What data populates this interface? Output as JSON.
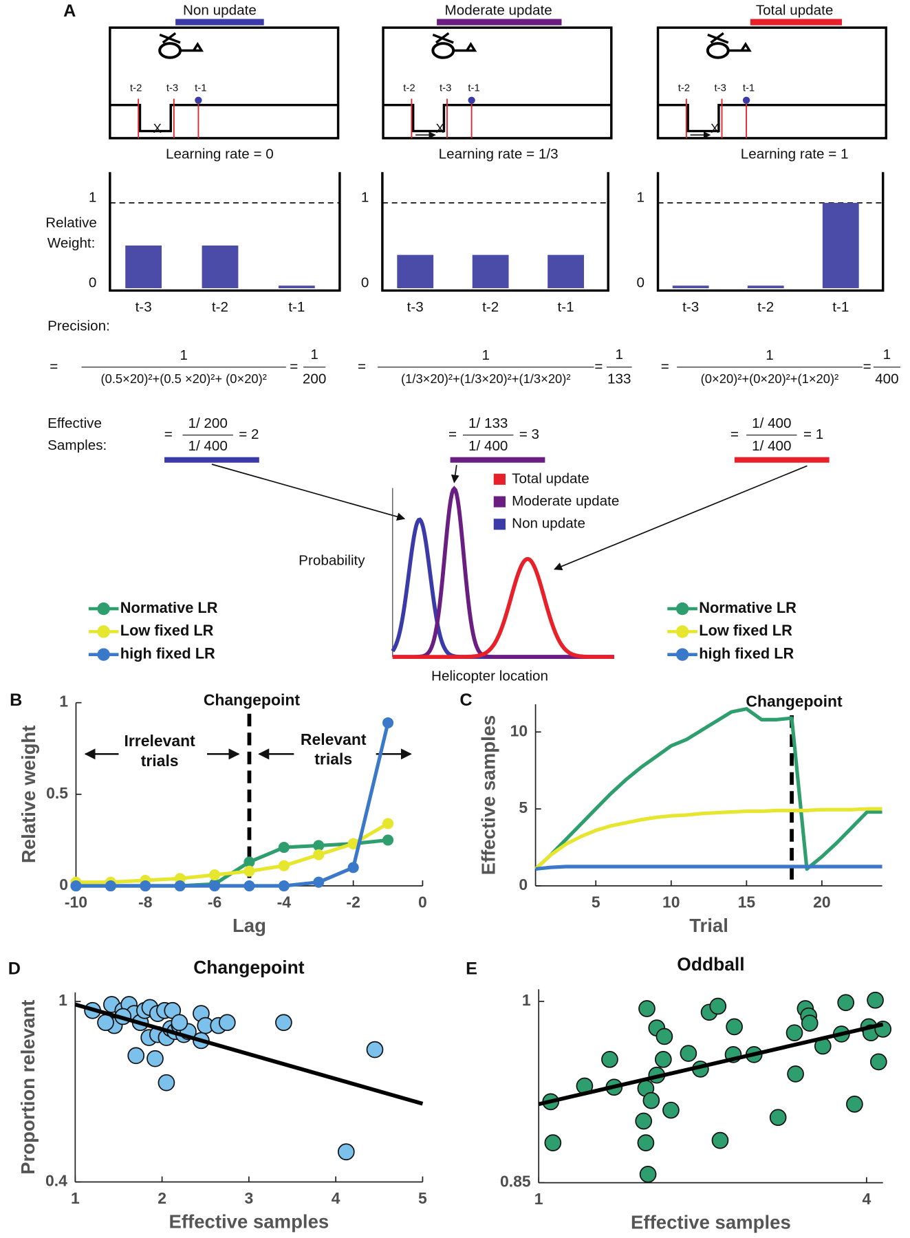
{
  "panel_labels": [
    "A",
    "B",
    "C",
    "D",
    "E"
  ],
  "diagram": {
    "boxes": [
      {
        "label": "Non update",
        "color": "#3a3aa8",
        "rate": "Learning rate = 0",
        "times": [
          "t-2",
          "t-3",
          "t-1"
        ],
        "marker": "X"
      },
      {
        "label": "Moderate update",
        "color": "#6a1e82",
        "rate": "Learning rate = 1/3",
        "times": [
          "t-2",
          "t-3",
          "t-1"
        ],
        "marker": "X"
      },
      {
        "label": "Total update",
        "color": "#e8202a",
        "rate": "Learning rate = 1",
        "times": [
          "t-2",
          "t-3",
          "t-1"
        ],
        "marker": "X"
      }
    ]
  },
  "precision": {
    "label": "Precision:",
    "equations": [
      {
        "lead": "=",
        "num": "1",
        "den": "(0.5×20)²+(0.5 ×20)²+ (0×20)²",
        "eq": "=",
        "rnum": "1",
        "rden": "200"
      },
      {
        "lead": "=",
        "num": "1",
        "den": "(1/3×20)²+(1/3×20)²+(1/3×20)²",
        "eq": "=",
        "rnum": "1",
        "rden": "133"
      },
      {
        "lead": "=",
        "num": "1",
        "den": "(0×20)²+(0×20)²+(1×20)²",
        "eq": "=",
        "rnum": "1",
        "rden": "400"
      }
    ]
  },
  "effective": {
    "label": [
      "Effective",
      "Samples:"
    ],
    "items": [
      {
        "lead": "=",
        "num": "1/ 200",
        "den": "1/ 400",
        "result": "= 2"
      },
      {
        "lead": "=",
        "num": "1/ 133",
        "den": "1/ 400",
        "result": "= 3"
      },
      {
        "lead": "=",
        "num": "1/ 400",
        "den": "1/ 400",
        "result": "= 1"
      }
    ]
  },
  "chart_data": [
    {
      "type": "bar",
      "categories": [
        "t-3",
        "t-2",
        "t-1"
      ],
      "values": [
        0.5,
        0.5,
        0.03
      ],
      "color": "#4b4ba8",
      "ylim": [
        0,
        1.36
      ],
      "yticks": [
        0,
        1
      ],
      "reference_line": 1,
      "ylabel": [
        "Relative",
        "Weight:"
      ]
    },
    {
      "type": "bar",
      "categories": [
        "t-3",
        "t-2",
        "t-1"
      ],
      "values": [
        0.39,
        0.39,
        0.39
      ],
      "color": "#4b4ba8",
      "ylim": [
        0,
        1.36
      ],
      "yticks": [
        0,
        1
      ],
      "reference_line": 1
    },
    {
      "type": "bar",
      "categories": [
        "t-3",
        "t-2",
        "t-1"
      ],
      "values": [
        0.03,
        0.03,
        1
      ],
      "color": "#4b4ba8",
      "ylim": [
        0,
        1.36
      ],
      "yticks": [
        0,
        1
      ],
      "reference_line": 1
    },
    {
      "type": "density",
      "ylabel": "Probability",
      "xlabel": "Helicopter location",
      "series": [
        {
          "name": "Total update",
          "color": "#e8202a"
        },
        {
          "name": "Moderate update",
          "color": "#6a1e82"
        },
        {
          "name": "Non update",
          "color": "#3a3aa8"
        }
      ]
    },
    {
      "type": "line",
      "xlabel": "Lag",
      "ylabel": "Relative weight",
      "markers": true,
      "x": [
        -10,
        -9,
        -8,
        -7,
        -6,
        -5,
        -4,
        -3,
        -2,
        -1
      ],
      "xlim": [
        -10,
        0
      ],
      "xticks": [
        -10,
        -8,
        -6,
        -4,
        -2,
        0
      ],
      "ylim": [
        0,
        1
      ],
      "yticks": [
        0,
        0.5,
        1
      ],
      "changepoint": -5,
      "annotations": {
        "changepoint": "Changepoint",
        "left": [
          "Irrelevant",
          "trials"
        ],
        "right": [
          "Relevant",
          "trials"
        ]
      },
      "series": [
        {
          "name": "Normative LR",
          "color": "#2e9e6e",
          "values": [
            0,
            0,
            0,
            0,
            0.01,
            0.13,
            0.21,
            0.22,
            0.23,
            0.25
          ]
        },
        {
          "name": "Low fixed LR",
          "color": "#e6e62e",
          "values": [
            0.02,
            0.02,
            0.03,
            0.04,
            0.06,
            0.08,
            0.11,
            0.17,
            0.23,
            0.34
          ]
        },
        {
          "name": "high fixed LR",
          "color": "#3a78c9",
          "values": [
            0,
            0,
            0,
            0,
            0,
            0,
            0,
            0.02,
            0.1,
            0.89
          ]
        }
      ]
    },
    {
      "type": "line",
      "xlabel": "Trial",
      "ylabel": "Effective samples",
      "markers": false,
      "x": [
        1,
        2,
        3,
        4,
        5,
        6,
        7,
        8,
        9,
        10,
        11,
        12,
        13,
        14,
        15,
        16,
        17,
        18,
        19,
        20,
        21,
        22,
        23,
        24
      ],
      "xlim": [
        1,
        24
      ],
      "xticks": [
        5,
        10,
        15,
        20
      ],
      "ylim": [
        0,
        11.8
      ],
      "yticks": [
        0,
        5,
        10
      ],
      "changepoint": 18,
      "annotations": {
        "changepoint": "Changepoint"
      },
      "series": [
        {
          "name": "Normative LR",
          "color": "#2e9e6e",
          "values": [
            1.1,
            2,
            3,
            4,
            5,
            6,
            6.9,
            7.7,
            8.4,
            9.1,
            9.5,
            10.1,
            10.7,
            11.3,
            11.5,
            10.8,
            10.8,
            10.9,
            1.1,
            1.9,
            2.8,
            3.8,
            4.8,
            4.8
          ]
        },
        {
          "name": "Low fixed LR",
          "color": "#e6e62e",
          "values": [
            1.1,
            2,
            2.7,
            3.2,
            3.6,
            3.9,
            4.1,
            4.3,
            4.45,
            4.55,
            4.6,
            4.7,
            4.75,
            4.8,
            4.85,
            4.85,
            4.9,
            4.9,
            4.9,
            4.95,
            4.95,
            4.95,
            5,
            5
          ]
        },
        {
          "name": "high fixed LR",
          "color": "#3a78c9",
          "values": [
            1.1,
            1.2,
            1.25,
            1.25,
            1.25,
            1.25,
            1.25,
            1.25,
            1.25,
            1.25,
            1.25,
            1.25,
            1.25,
            1.25,
            1.25,
            1.25,
            1.25,
            1.25,
            1.25,
            1.25,
            1.25,
            1.25,
            1.25,
            1.25
          ]
        }
      ]
    },
    {
      "type": "scatter",
      "title": "Changepoint",
      "xlabel": "Effective samples",
      "ylabel": "Proportion relevant",
      "color": "#7cc0ec",
      "xlim": [
        1,
        5
      ],
      "xticks": [
        1,
        2,
        3,
        4,
        5
      ],
      "ylim": [
        0.4,
        1.03
      ],
      "yticks": [
        0.4,
        1
      ],
      "x": [
        1.2,
        1.42,
        1.45,
        1.55,
        1.62,
        1.68,
        1.75,
        1.8,
        1.86,
        1.95,
        2.03,
        2.12,
        1.85,
        1.95,
        2.05,
        2.1,
        2.15,
        2.2,
        2.25,
        2.3,
        2.45,
        2.5,
        2.45,
        2.65,
        2.75,
        1.7,
        1.92,
        2.05,
        1.35,
        3.4,
        4.45,
        4.12,
        2.2,
        1.55
      ],
      "values": [
        0.97,
        0.99,
        0.92,
        0.97,
        0.99,
        0.96,
        0.93,
        0.97,
        0.98,
        0.96,
        0.97,
        0.97,
        0.88,
        0.89,
        0.88,
        0.91,
        0.9,
        0.92,
        0.89,
        0.9,
        0.96,
        0.92,
        0.87,
        0.92,
        0.93,
        0.82,
        0.81,
        0.73,
        0.93,
        0.93,
        0.84,
        0.5,
        0.93,
        0.95
      ],
      "fit": {
        "x": [
          1,
          5
        ],
        "values": [
          0.99,
          0.66
        ]
      }
    },
    {
      "type": "scatter",
      "title": "Oddball",
      "xlabel": "Effective samples",
      "color": "#2e9e6e",
      "xlim": [
        1,
        4.15
      ],
      "xticks": [
        1,
        4
      ],
      "ylim": [
        0.85,
        1.01
      ],
      "yticks": [
        0.85,
        1
      ],
      "x": [
        1.11,
        1.13,
        1.42,
        1.69,
        1.65,
        1.99,
        2.08,
        2.15,
        2.14,
        2.08,
        1.98,
        2.03,
        1.96,
        1.98,
        2.0,
        2.21,
        2.37,
        2.48,
        2.56,
        2.64,
        2.66,
        2.78,
        2.79,
        2.97,
        3.19,
        3.35,
        3.34,
        3.44,
        3.47,
        3.48,
        3.6,
        3.77,
        3.81,
        3.89,
        4.02,
        4.04,
        4.08,
        4.15,
        4.11
      ],
      "values": [
        0.917,
        0.883,
        0.93,
        0.929,
        0.952,
        0.994,
        0.978,
        0.971,
        0.952,
        0.939,
        0.928,
        0.918,
        0.901,
        0.883,
        0.857,
        0.91,
        0.957,
        0.944,
        0.991,
        0.996,
        0.885,
        0.956,
        0.979,
        0.956,
        0.904,
        0.94,
        0.974,
        0.994,
        0.988,
        0.982,
        0.963,
        0.973,
        0.999,
        0.915,
        0.979,
        0.974,
        1.001,
        0.977,
        0.95
      ],
      "fit": {
        "x": [
          1,
          4.15
        ],
        "values": [
          0.915,
          0.981
        ]
      }
    }
  ]
}
